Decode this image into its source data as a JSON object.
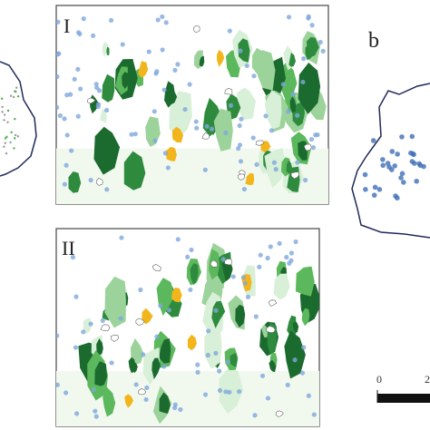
{
  "panels": [
    {
      "label": "I"
    },
    {
      "label": "II"
    }
  ],
  "overview": {
    "label": "b"
  },
  "scale_bar": {
    "labels": [
      "0",
      "2"
    ]
  }
}
